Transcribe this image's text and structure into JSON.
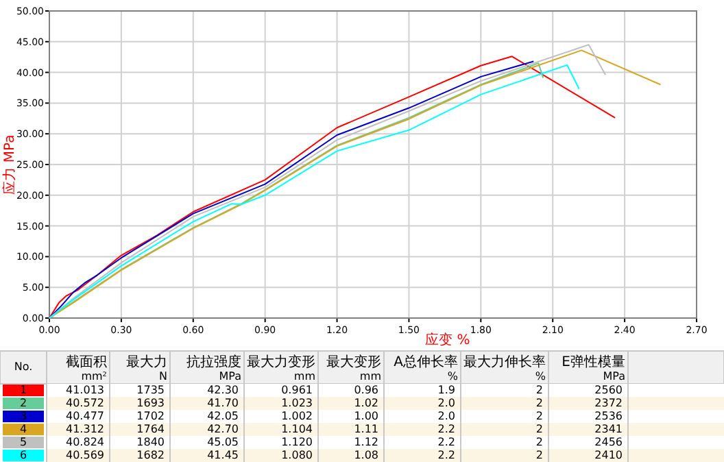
{
  "chart_data": [
    {
      "type": "line",
      "xlabel": "应变 %",
      "ylabel": "应力 MPa",
      "xlim": [
        0,
        2.7
      ],
      "ylim": [
        0,
        50
      ],
      "xticks": [
        {
          "value": 0,
          "label": "0.00"
        },
        {
          "value": 0.3,
          "label": "0.30"
        },
        {
          "value": 0.6,
          "label": "0.60"
        },
        {
          "value": 0.9,
          "label": "0.90"
        },
        {
          "value": 1.2,
          "label": "1.20"
        },
        {
          "value": 1.5,
          "label": "1.50"
        },
        {
          "value": 1.8,
          "label": "1.80"
        },
        {
          "value": 2.1,
          "label": "2.10"
        },
        {
          "value": 2.4,
          "label": "2.40"
        },
        {
          "value": 2.7,
          "label": "2.70"
        }
      ],
      "yticks": [
        {
          "value": 0,
          "label": "0.00"
        },
        {
          "value": 5,
          "label": "5.00"
        },
        {
          "value": 10,
          "label": "10.00"
        },
        {
          "value": 15,
          "label": "15.00"
        },
        {
          "value": 20,
          "label": "20.00"
        },
        {
          "value": 25,
          "label": "25.00"
        },
        {
          "value": 30,
          "label": "30.00"
        },
        {
          "value": 35,
          "label": "35.00"
        },
        {
          "value": 40,
          "label": "40.00"
        },
        {
          "value": 45,
          "label": "45.00"
        },
        {
          "value": 50,
          "label": "50.00"
        }
      ],
      "grid": true,
      "legend": "bottom",
      "line_style": "solid",
      "marker": "none",
      "series": [
        {
          "name": "1",
          "color": "#ff0000",
          "x": [
            0,
            0.04,
            0.07,
            0.12,
            0.2,
            0.3,
            0.45,
            0.6,
            0.9,
            1.2,
            1.5,
            1.8,
            1.93,
            2.36
          ],
          "values": [
            0,
            2.5,
            3.6,
            4.6,
            7,
            10.2,
            13.5,
            17.3,
            22.5,
            31,
            36,
            41.1,
            42.6,
            32.6
          ]
        },
        {
          "name": "2",
          "color": "#66cc99",
          "x": [
            0,
            0.1,
            0.3,
            0.6,
            0.8,
            0.9,
            1.2,
            1.5,
            1.8,
            2.04,
            2.06
          ],
          "values": [
            0,
            2.6,
            7.9,
            14.7,
            18.6,
            20.9,
            28.1,
            32.6,
            38.0,
            41.5,
            39.1
          ]
        },
        {
          "name": "3",
          "color": "#0000cc",
          "x": [
            0,
            0.05,
            0.1,
            0.15,
            0.2,
            0.3,
            0.6,
            0.9,
            1.2,
            1.5,
            1.8,
            2.02
          ],
          "values": [
            0,
            2,
            4.2,
            5.8,
            7,
            9.8,
            17.0,
            21.8,
            29.8,
            34.2,
            39.3,
            41.8
          ]
        },
        {
          "name": "4",
          "color": "#daa520",
          "x": [
            0,
            0.1,
            0.3,
            0.6,
            0.8,
            0.9,
            1.2,
            1.5,
            1.8,
            2.22,
            2.55
          ],
          "values": [
            0,
            2.5,
            7.8,
            14.6,
            18.5,
            20.8,
            28.0,
            32.4,
            37.9,
            43.6,
            38.0
          ]
        },
        {
          "name": "5",
          "color": "#c0c0c0",
          "x": [
            0,
            0.1,
            0.3,
            0.6,
            0.9,
            1.2,
            1.5,
            1.8,
            2.25,
            2.32
          ],
          "values": [
            0,
            3.2,
            9,
            16.5,
            21.3,
            29.0,
            33.7,
            38.6,
            44.5,
            39.6
          ]
        },
        {
          "name": "6",
          "color": "#00ffff",
          "x": [
            0,
            0.1,
            0.3,
            0.6,
            0.76,
            0.8,
            0.9,
            1.2,
            1.5,
            1.8,
            2.16,
            2.21
          ],
          "values": [
            0,
            3,
            8.5,
            15.7,
            18.6,
            18.5,
            20.0,
            27.2,
            30.6,
            36.4,
            41.2,
            37.3
          ]
        }
      ]
    },
    {
      "type": "other",
      "annotations": [
        "No.",
        "截面积",
        "mm²",
        "最大力",
        "N",
        "抗拉强度",
        "MPa",
        "最大力变形",
        "mm",
        "最大变形",
        "mm",
        "A总伸长率",
        "%",
        "最大力伸长率",
        "%",
        "E弹性模量",
        "MPa",
        "41.013",
        "1735",
        "42.30",
        "0.961",
        "0.96",
        "1.9",
        "2",
        "2560",
        "40.572",
        "1693",
        "41.70",
        "1.023",
        "1.02",
        "2.0",
        "2",
        "2372",
        "40.477",
        "1702",
        "42.05",
        "1.002",
        "1.00",
        "2.0",
        "2",
        "2536",
        "41.312",
        "1764",
        "42.70",
        "1.104",
        "1.11",
        "2.2",
        "2",
        "2341",
        "40.824",
        "1840",
        "45.05",
        "1.120",
        "1.12",
        "2.2",
        "2",
        "2456",
        "40.569",
        "1682",
        "41.45",
        "1.080",
        "1.08",
        "2.2",
        "2",
        "2410"
      ]
    }
  ]
}
